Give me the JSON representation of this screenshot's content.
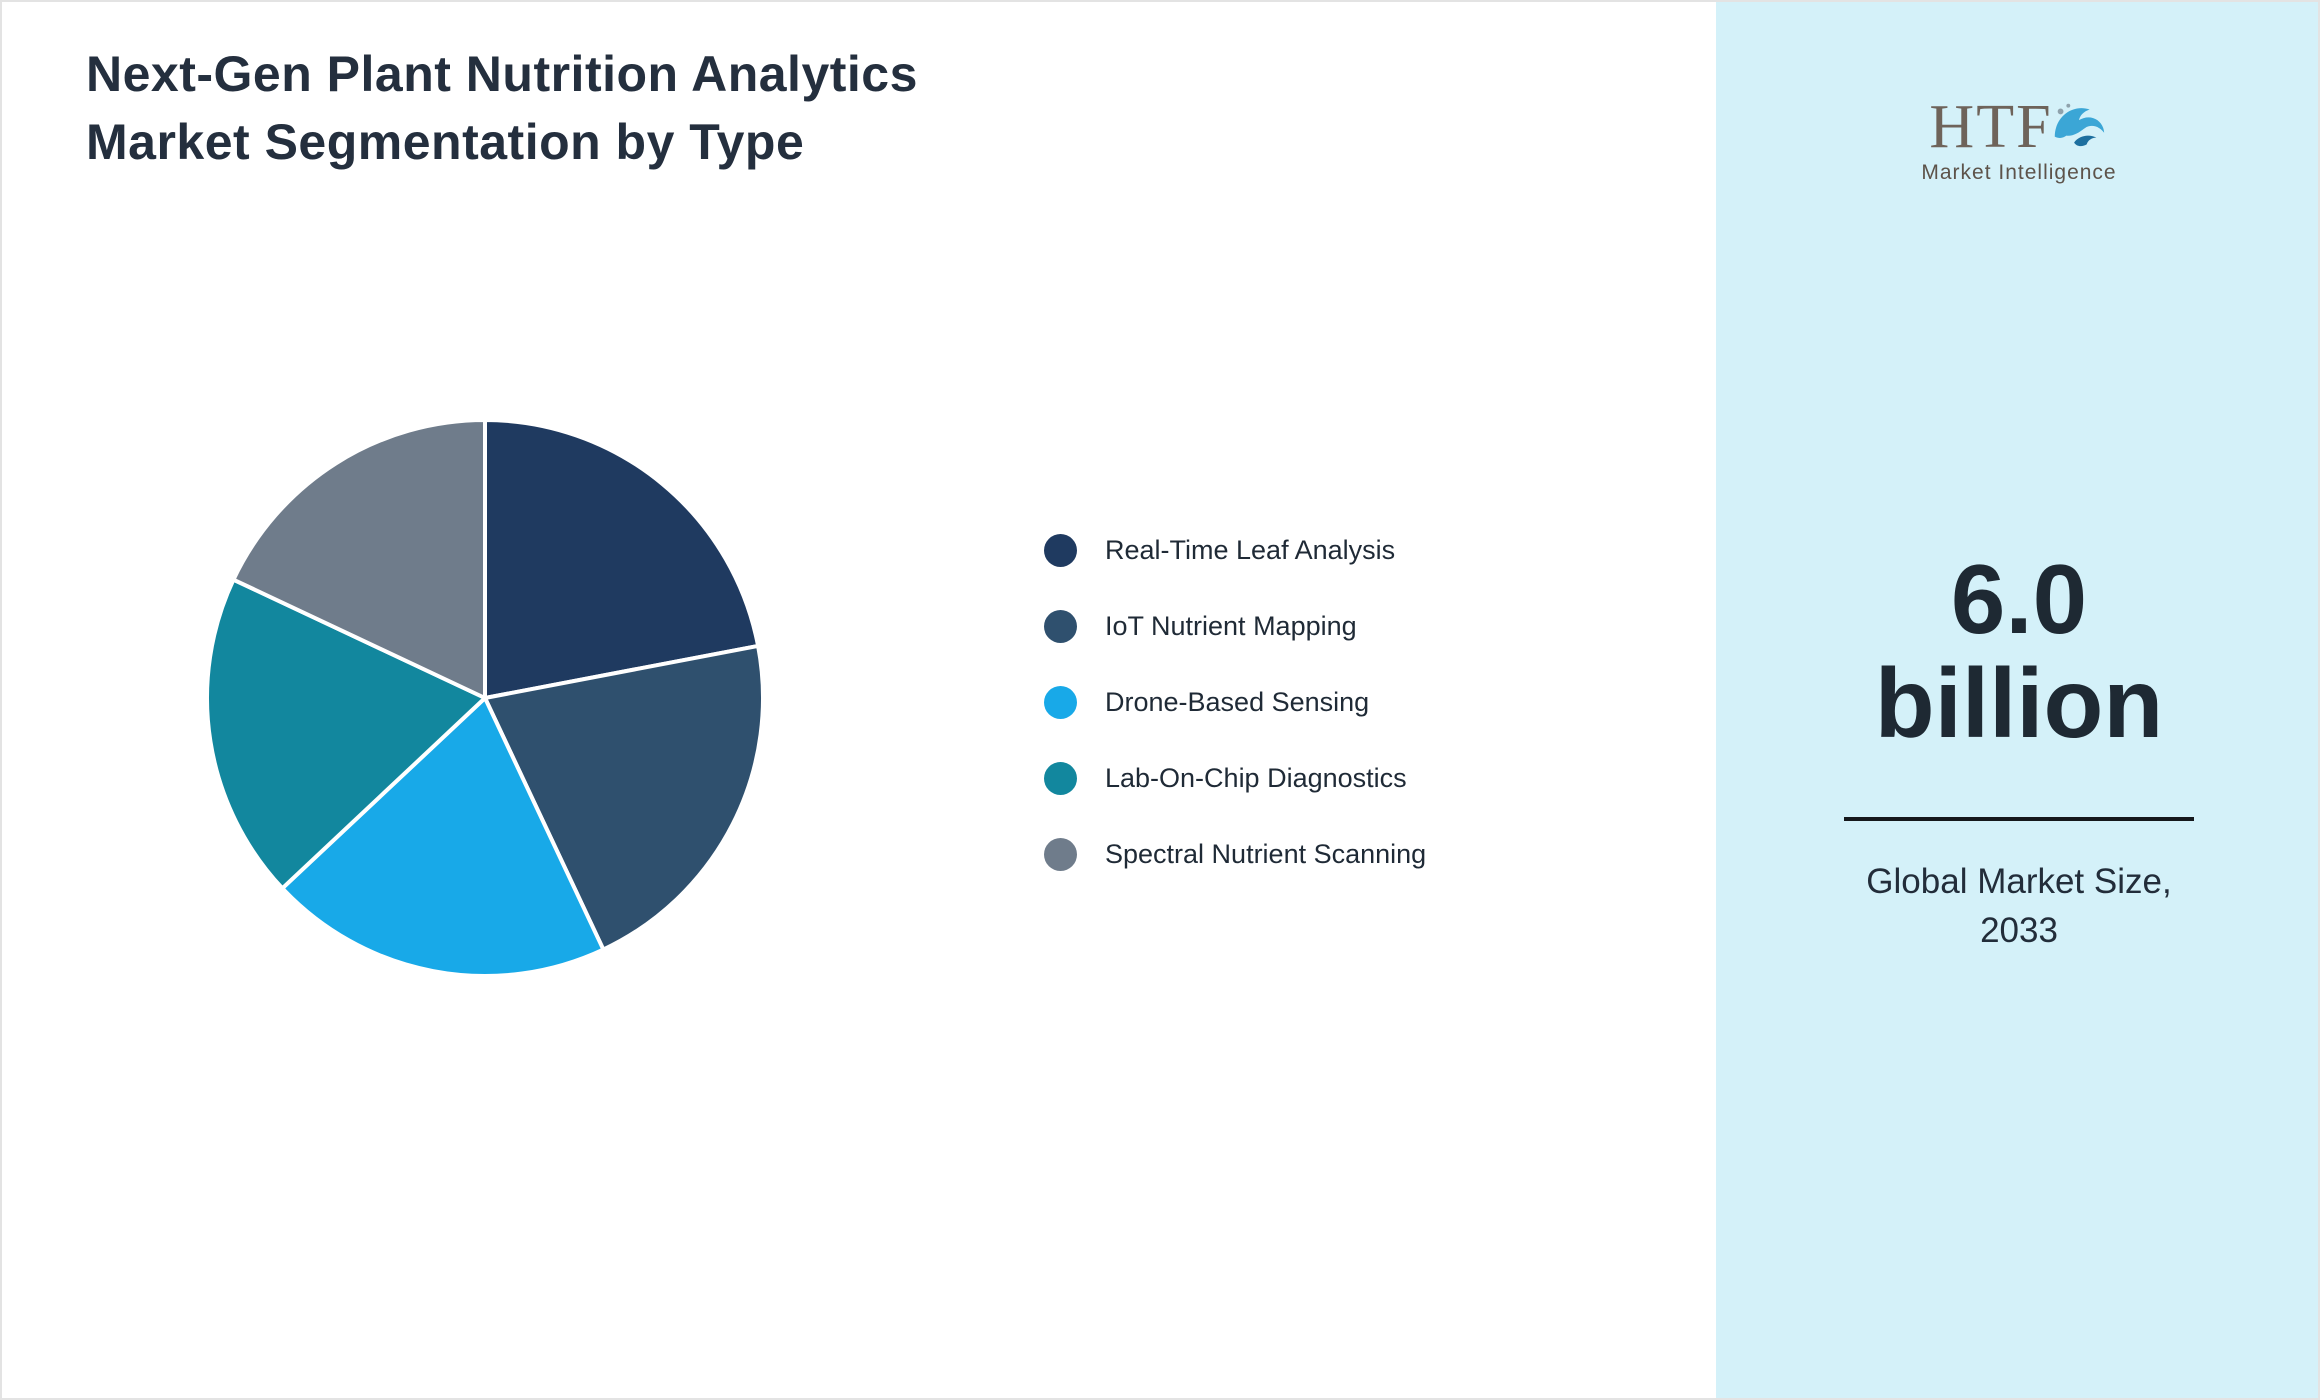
{
  "header": {
    "title_line1": "Next-Gen Plant Nutrition Analytics",
    "title_line2": "Market Segmentation by Type"
  },
  "chart_data": {
    "type": "pie",
    "title": "Next-Gen Plant Nutrition Analytics Market Segmentation by Type",
    "categories": [
      "Real-Time Leaf Analysis",
      "IoT Nutrient Mapping",
      "Drone-Based Sensing",
      "Lab-On-Chip Diagnostics",
      "Spectral Nutrient Scanning"
    ],
    "values": [
      22,
      21,
      20,
      19,
      18
    ],
    "values_are_estimates": true,
    "colors": [
      "#1F3A60",
      "#2F506E",
      "#18A9E8",
      "#12879E",
      "#6F7C8B"
    ],
    "start_angle_deg": 0,
    "direction": "clockwise",
    "slice_border_color": "#FFFFFF",
    "legend_position": "right",
    "legend_marker": "circle"
  },
  "sidebar": {
    "background_color": "#D4F1F9",
    "logo": {
      "text": "HTF",
      "subtext": "Market Intelligence",
      "icon": "dolphin-icon"
    },
    "market_size": {
      "value": "6.0",
      "unit": "billion",
      "label_line1": "Global Market Size,",
      "label_line2": "2033"
    }
  }
}
